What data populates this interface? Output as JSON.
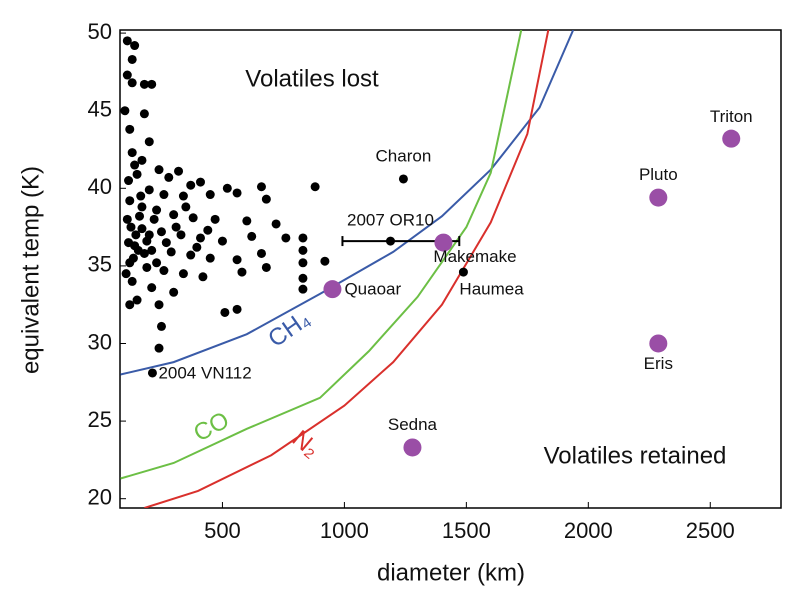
{
  "chart_data": {
    "type": "scatter",
    "xlabel": "diameter (km)",
    "ylabel": "equivalent temp (K)",
    "xlim": [
      80,
      2790
    ],
    "ylim": [
      19.4,
      50.2
    ],
    "xticks": [
      500,
      1000,
      1500,
      2000,
      2500
    ],
    "yticks": [
      20,
      25,
      30,
      35,
      40,
      45,
      50
    ],
    "annotations": [
      "Volatiles lost",
      "Volatiles retained"
    ],
    "curves": [
      {
        "name": "CH₄",
        "color": "#3a5ba8",
        "x": [
          82,
          300,
          600,
          900,
          1200,
          1400,
          1600,
          1800,
          1938
        ],
        "y": [
          28,
          28.8,
          30.6,
          33.2,
          35.9,
          38.2,
          41.2,
          45.2,
          50.2
        ]
      },
      {
        "name": "CO",
        "color": "#6cbf45",
        "x": [
          82,
          300,
          600,
          900,
          1100,
          1300,
          1500,
          1600,
          1725
        ],
        "y": [
          21.3,
          22.3,
          24.5,
          26.5,
          29.5,
          33,
          37.5,
          41,
          50.2
        ]
      },
      {
        "name": "N₂",
        "color": "#d9302c",
        "x": [
          180,
          400,
          700,
          1000,
          1200,
          1400,
          1600,
          1750,
          1836
        ],
        "y": [
          19.4,
          20.5,
          22.8,
          26,
          28.8,
          32.5,
          37.8,
          43.5,
          50.2
        ]
      }
    ],
    "population": {
      "color": "#000000",
      "x": [
        110,
        140,
        130,
        110,
        130,
        180,
        210,
        100,
        180,
        120,
        200,
        130,
        170,
        240,
        320,
        150,
        280,
        410,
        370,
        520,
        660,
        880,
        200,
        260,
        340,
        450,
        560,
        680,
        120,
        170,
        230,
        300,
        380,
        470,
        600,
        720,
        170,
        250,
        330,
        410,
        500,
        620,
        760,
        830,
        140,
        210,
        290,
        370,
        450,
        560,
        660,
        830,
        120,
        190,
        260,
        340,
        420,
        580,
        680,
        830,
        920,
        130,
        210,
        300,
        830,
        830,
        150,
        240,
        510,
        560,
        120,
        250,
        240,
        110,
        115,
        125,
        135,
        160,
        145,
        155,
        180,
        165,
        200,
        220,
        190,
        115,
        140,
        105,
        230,
        270,
        310,
        350,
        395,
        440
      ],
      "y": [
        49.5,
        49.2,
        48.3,
        47.3,
        46.8,
        46.7,
        46.7,
        45.0,
        44.8,
        43.8,
        43.0,
        42.3,
        41.8,
        41.2,
        41.1,
        40.9,
        40.7,
        40.4,
        40.2,
        40.0,
        40.1,
        40.1,
        39.9,
        39.6,
        39.5,
        39.6,
        39.7,
        39.3,
        39.2,
        38.8,
        38.6,
        38.3,
        38.1,
        38.0,
        37.9,
        37.7,
        37.4,
        37.2,
        37.0,
        36.8,
        36.6,
        36.9,
        36.8,
        36.8,
        36.3,
        36.0,
        35.9,
        35.7,
        35.5,
        35.4,
        35.8,
        36.0,
        35.2,
        34.9,
        34.7,
        34.5,
        34.3,
        34.6,
        34.9,
        35.2,
        35.3,
        34.0,
        33.6,
        33.3,
        34.2,
        33.5,
        32.8,
        32.5,
        32.0,
        32.2,
        32.5,
        31.1,
        29.7,
        38.0,
        36.5,
        37.5,
        35.5,
        38.2,
        37.0,
        36.0,
        35.8,
        39.5,
        37.0,
        38.0,
        36.6,
        40.5,
        41.5,
        34.5,
        35.2,
        36.5,
        37.5,
        38.8,
        36.2,
        37.3
      ]
    },
    "small_bodies": {
      "color": "#000000",
      "labels": [
        "Charon",
        "2007 OR10",
        "Haumea",
        "2004 VN112"
      ],
      "x": [
        1242,
        1189,
        1488,
        213
      ],
      "y": [
        40.6,
        36.6,
        34.6,
        28.1
      ]
    },
    "error_bar": {
      "x": [
        992,
        1471
      ],
      "y": 36.6
    },
    "large_bodies": {
      "color": "#9a4ea6",
      "labels": [
        "Triton",
        "Pluto",
        "Eris",
        "Sedna",
        "Makemake",
        "Quaoar"
      ],
      "x": [
        2586,
        2287,
        2287,
        1279,
        1406,
        951
      ],
      "y": [
        43.2,
        39.4,
        30.0,
        23.3,
        36.5,
        33.5
      ]
    }
  }
}
